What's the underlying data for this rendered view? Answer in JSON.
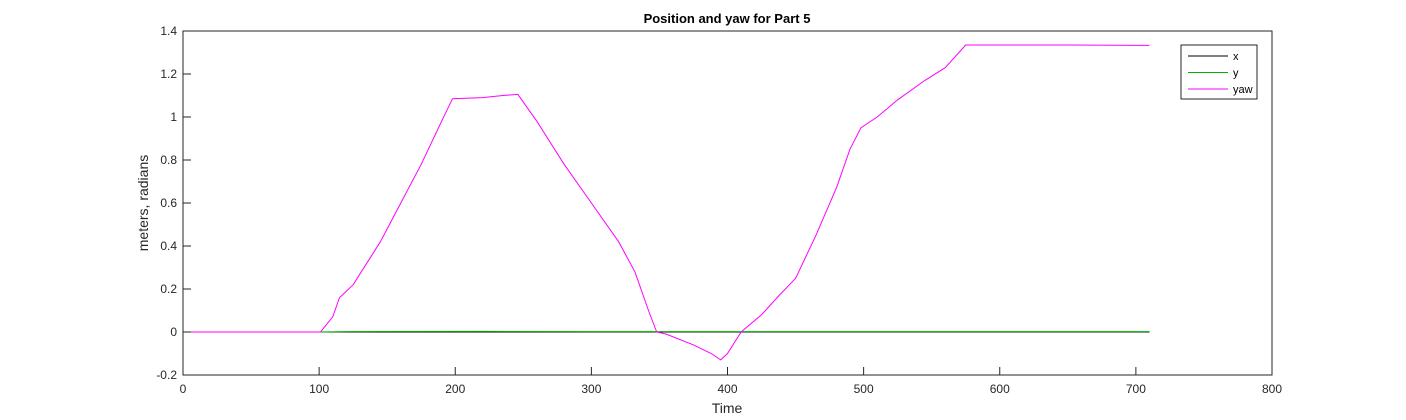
{
  "chart_data": {
    "type": "line",
    "title": "Position and yaw for Part 5",
    "xlabel": "Time",
    "ylabel": "meters, radians",
    "xlim": [
      0,
      800
    ],
    "ylim": [
      -0.2,
      1.4
    ],
    "xticks": [
      0,
      100,
      200,
      300,
      400,
      500,
      600,
      700,
      800
    ],
    "yticks": [
      -0.2,
      0,
      0.2,
      0.4,
      0.6,
      0.8,
      1,
      1.2,
      1.4
    ],
    "xtick_labels": [
      "0",
      "100",
      "200",
      "300",
      "400",
      "500",
      "600",
      "700",
      "800"
    ],
    "ytick_labels": [
      "-0.2",
      "0",
      "0.2",
      "0.4",
      "0.6",
      "0.8",
      "1",
      "1.2",
      "1.4"
    ],
    "grid": false,
    "legend_position": "top-right",
    "series": [
      {
        "name": "x",
        "color": "#000000",
        "points": [
          [
            0,
            0
          ],
          [
            710,
            0
          ]
        ]
      },
      {
        "name": "y",
        "color": "#00b000",
        "points": [
          [
            0,
            0
          ],
          [
            100,
            0
          ],
          [
            120,
            0.002
          ],
          [
            220,
            0.003
          ],
          [
            300,
            0.002
          ],
          [
            400,
            0.002
          ],
          [
            710,
            0.002
          ]
        ]
      },
      {
        "name": "yaw",
        "color": "#ff00ff",
        "points": [
          [
            0,
            0
          ],
          [
            101,
            0
          ],
          [
            110,
            0.07
          ],
          [
            115,
            0.16
          ],
          [
            125,
            0.22
          ],
          [
            135,
            0.32
          ],
          [
            145,
            0.42
          ],
          [
            160,
            0.6
          ],
          [
            175,
            0.78
          ],
          [
            190,
            0.98
          ],
          [
            198,
            1.085
          ],
          [
            220,
            1.09
          ],
          [
            235,
            1.1
          ],
          [
            246,
            1.105
          ],
          [
            260,
            0.98
          ],
          [
            280,
            0.78
          ],
          [
            300,
            0.6
          ],
          [
            320,
            0.42
          ],
          [
            332,
            0.28
          ],
          [
            342,
            0.1
          ],
          [
            348,
            0
          ],
          [
            355,
            -0.01
          ],
          [
            375,
            -0.06
          ],
          [
            388,
            -0.1
          ],
          [
            395,
            -0.13
          ],
          [
            400,
            -0.1
          ],
          [
            410,
            0
          ],
          [
            425,
            0.08
          ],
          [
            438,
            0.17
          ],
          [
            450,
            0.25
          ],
          [
            465,
            0.45
          ],
          [
            480,
            0.67
          ],
          [
            490,
            0.85
          ],
          [
            498,
            0.95
          ],
          [
            510,
            1.0
          ],
          [
            525,
            1.08
          ],
          [
            545,
            1.17
          ],
          [
            560,
            1.23
          ],
          [
            575,
            1.335
          ],
          [
            600,
            1.335
          ],
          [
            650,
            1.335
          ],
          [
            710,
            1.333
          ]
        ]
      }
    ]
  }
}
